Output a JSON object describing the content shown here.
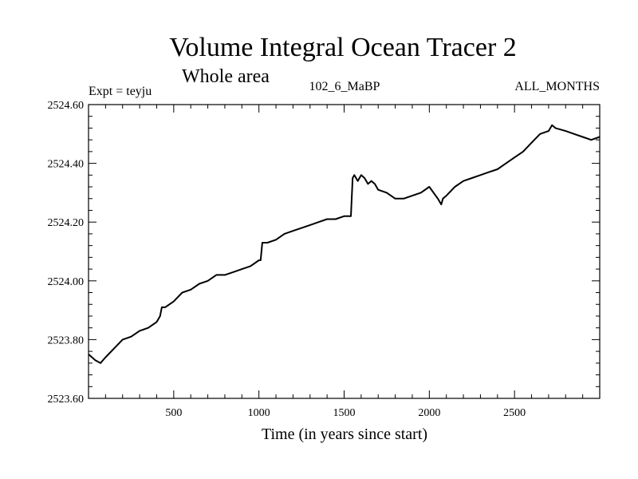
{
  "chart_data": {
    "type": "line",
    "title": "Volume Integral Ocean Tracer 2",
    "subtitle": "Whole area",
    "experiment_label": "Expt = teyju",
    "period_label": "102_6_MaBP",
    "months_label": "ALL_MONTHS",
    "xlabel": "Time (in years since start)",
    "ylabel": "",
    "xlim": [
      0,
      3000
    ],
    "ylim": [
      2523.6,
      2524.6
    ],
    "x_ticks": [
      500,
      1000,
      1500,
      2000,
      2500
    ],
    "y_ticks": [
      "2523.60",
      "2523.80",
      "2524.00",
      "2524.20",
      "2524.40",
      "2524.60"
    ],
    "grid": false,
    "line_color": "#000000",
    "series": [
      {
        "x": [
          0,
          40,
          70,
          100,
          150,
          200,
          250,
          300,
          350,
          400,
          420,
          430,
          450,
          500,
          550,
          600,
          650,
          700,
          750,
          800,
          850,
          900,
          950,
          1000,
          1010,
          1020,
          1050,
          1100,
          1150,
          1200,
          1250,
          1300,
          1350,
          1400,
          1450,
          1500,
          1540,
          1550,
          1560,
          1580,
          1600,
          1620,
          1640,
          1660,
          1680,
          1700,
          1750,
          1800,
          1850,
          1900,
          1950,
          2000,
          2050,
          2070,
          2080,
          2100,
          2150,
          2200,
          2250,
          2300,
          2350,
          2400,
          2450,
          2500,
          2550,
          2600,
          2650,
          2700,
          2720,
          2740,
          2800,
          2850,
          2900,
          2950,
          3000
        ],
        "y": [
          2523.75,
          2523.73,
          2523.72,
          2523.74,
          2523.77,
          2523.8,
          2523.81,
          2523.83,
          2523.84,
          2523.86,
          2523.88,
          2523.91,
          2523.91,
          2523.93,
          2523.96,
          2523.97,
          2523.99,
          2524.0,
          2524.02,
          2524.02,
          2524.03,
          2524.04,
          2524.05,
          2524.07,
          2524.07,
          2524.13,
          2524.13,
          2524.14,
          2524.16,
          2524.17,
          2524.18,
          2524.19,
          2524.2,
          2524.21,
          2524.21,
          2524.22,
          2524.22,
          2524.35,
          2524.36,
          2524.34,
          2524.36,
          2524.35,
          2524.33,
          2524.34,
          2524.33,
          2524.31,
          2524.3,
          2524.28,
          2524.28,
          2524.29,
          2524.3,
          2524.32,
          2524.28,
          2524.26,
          2524.28,
          2524.29,
          2524.32,
          2524.34,
          2524.35,
          2524.36,
          2524.37,
          2524.38,
          2524.4,
          2524.42,
          2524.44,
          2524.47,
          2524.5,
          2524.51,
          2524.53,
          2524.52,
          2524.51,
          2524.5,
          2524.49,
          2524.48,
          2524.49
        ]
      }
    ]
  }
}
